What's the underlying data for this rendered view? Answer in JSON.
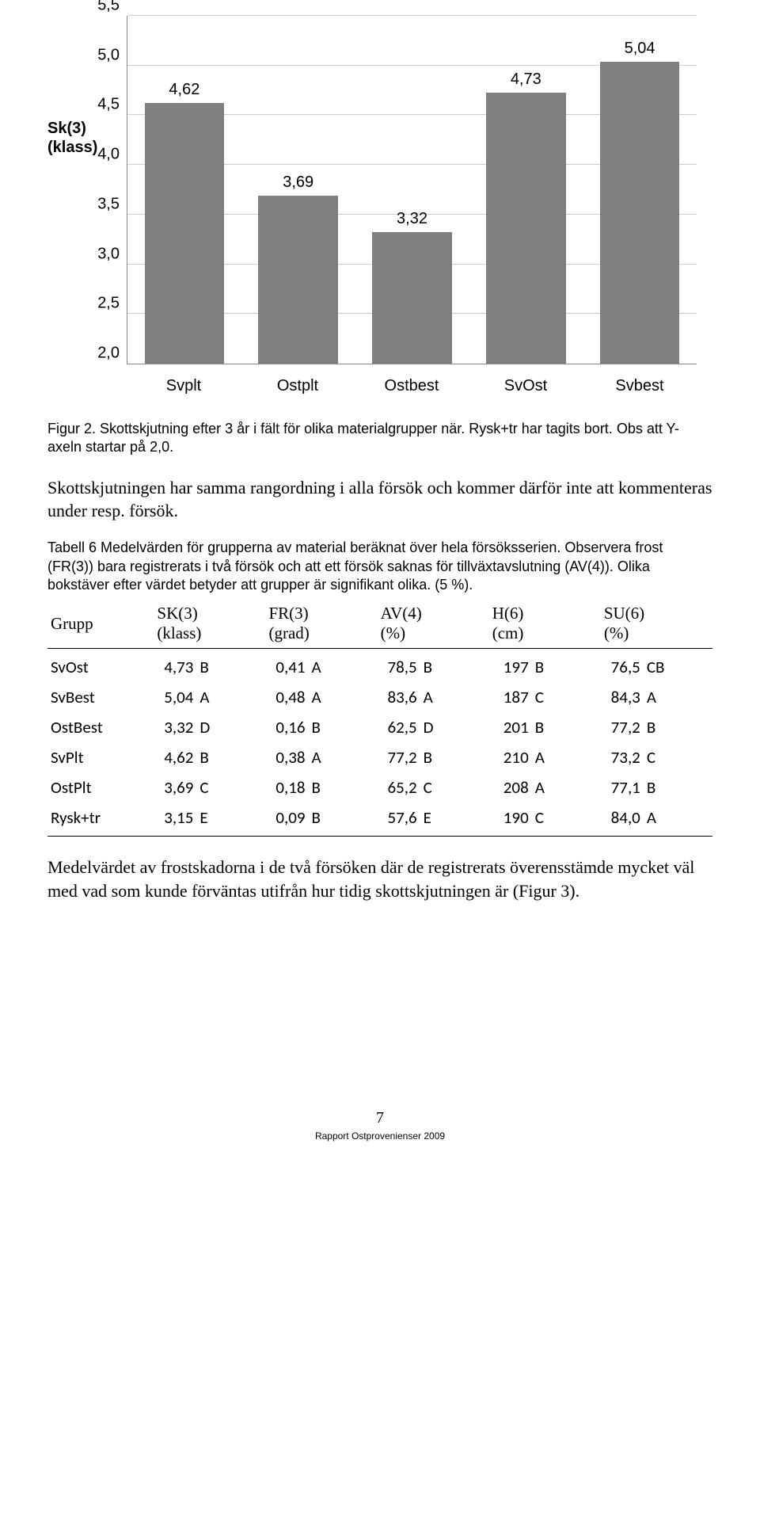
{
  "chart": {
    "type": "bar",
    "y_axis_label_line1": "Sk(3)",
    "y_axis_label_line2": "(klass)",
    "ymin": 2.0,
    "ymax": 5.5,
    "ytick_step": 0.5,
    "yticks": [
      "2,0",
      "2,5",
      "3,0",
      "3,5",
      "4,0",
      "4,5",
      "5,0",
      "5,5"
    ],
    "categories": [
      "Svplt",
      "Ostplt",
      "Ostbest",
      "SvOst",
      "Svbest"
    ],
    "values": [
      4.62,
      3.69,
      3.32,
      4.73,
      5.04
    ],
    "value_labels": [
      "4,62",
      "3,69",
      "3,32",
      "4,73",
      "5,04"
    ],
    "bar_color": "#808080",
    "grid_color": "#cccccc",
    "axis_color": "#888888",
    "background_color": "#ffffff",
    "label_fontsize": 20,
    "tick_fontsize": 20,
    "bar_width": 0.7
  },
  "figure_caption": "Figur 2. Skottskjutning efter 3 år i fält för olika materialgrupper när. Rysk+tr har tagits bort. Obs att Y-axeln startar på 2,0.",
  "paragraph1": "Skottskjutningen har samma rangordning i alla försök och kommer därför inte att kommenteras under resp. försök.",
  "table_caption": "Tabell 6 Medelvärden för grupperna av material beräknat över hela försöksserien. Observera frost (FR(3)) bara registrerats i två försök och att ett försök saknas för tillväxtavslutning (AV(4)). Olika bokstäver efter värdet betyder att grupper är signifikant olika. (5 %).",
  "table": {
    "columns": [
      {
        "top": "Grupp",
        "unit": ""
      },
      {
        "top": "SK(3)",
        "unit": "(klass)"
      },
      {
        "top": "FR(3)",
        "unit": "(grad)"
      },
      {
        "top": "AV(4)",
        "unit": "(%)"
      },
      {
        "top": "H(6)",
        "unit": "(cm)"
      },
      {
        "top": "SU(6)",
        "unit": "(%)"
      }
    ],
    "rows": [
      {
        "grupp": "SvOst",
        "sk": "4,73",
        "sk_l": "B",
        "fr": "0,41",
        "fr_l": "A",
        "av": "78,5",
        "av_l": "B",
        "h": "197",
        "h_l": "B",
        "su": "76,5",
        "su_l": "CB"
      },
      {
        "grupp": "SvBest",
        "sk": "5,04",
        "sk_l": "A",
        "fr": "0,48",
        "fr_l": "A",
        "av": "83,6",
        "av_l": "A",
        "h": "187",
        "h_l": "C",
        "su": "84,3",
        "su_l": "A"
      },
      {
        "grupp": "OstBest",
        "sk": "3,32",
        "sk_l": "D",
        "fr": "0,16",
        "fr_l": "B",
        "av": "62,5",
        "av_l": "D",
        "h": "201",
        "h_l": "B",
        "su": "77,2",
        "su_l": "B"
      },
      {
        "grupp": "SvPlt",
        "sk": "4,62",
        "sk_l": "B",
        "fr": "0,38",
        "fr_l": "A",
        "av": "77,2",
        "av_l": "B",
        "h": "210",
        "h_l": "A",
        "su": "73,2",
        "su_l": "C"
      },
      {
        "grupp": "OstPlt",
        "sk": "3,69",
        "sk_l": "C",
        "fr": "0,18",
        "fr_l": "B",
        "av": "65,2",
        "av_l": "C",
        "h": "208",
        "h_l": "A",
        "su": "77,1",
        "su_l": "B"
      },
      {
        "grupp": "Rysk+tr",
        "sk": "3,15",
        "sk_l": "E",
        "fr": "0,09",
        "fr_l": "B",
        "av": "57,6",
        "av_l": "E",
        "h": "190",
        "h_l": "C",
        "su": "84,0",
        "su_l": "A"
      }
    ]
  },
  "paragraph2": "Medelvärdet av frostskadorna i de två försöken där de registrerats överensstämde mycket väl med vad som kunde förväntas utifrån hur tidig skottskjutningen är (Figur 3).",
  "page_number": "7",
  "footer": "Rapport Ostprovenienser 2009"
}
